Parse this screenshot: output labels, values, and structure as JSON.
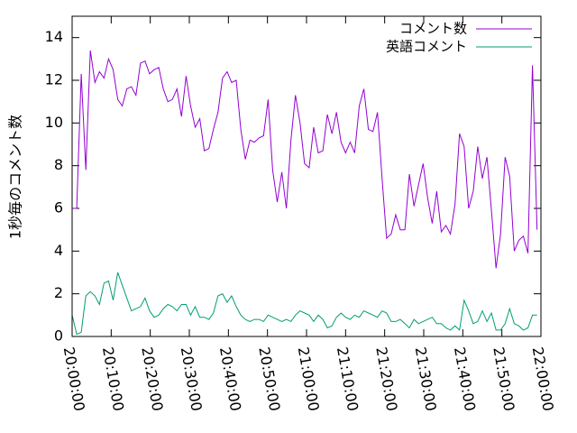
{
  "chart_data": {
    "type": "line",
    "ylabel": "1秒毎のコメント数",
    "x": [
      "20:00:00",
      "20:01:10",
      "20:02:20",
      "20:03:30",
      "20:04:40",
      "20:05:50",
      "20:07:00",
      "20:08:10",
      "20:09:20",
      "20:10:30",
      "20:11:40",
      "20:12:50",
      "20:14:00",
      "20:15:10",
      "20:16:20",
      "20:17:30",
      "20:18:40",
      "20:19:50",
      "20:21:00",
      "20:22:10",
      "20:23:20",
      "20:24:30",
      "20:25:40",
      "20:26:50",
      "20:28:00",
      "20:29:10",
      "20:30:20",
      "20:31:30",
      "20:32:40",
      "20:33:50",
      "20:35:00",
      "20:36:10",
      "20:37:20",
      "20:38:30",
      "20:39:40",
      "20:40:50",
      "20:42:00",
      "20:43:10",
      "20:44:20",
      "20:45:30",
      "20:46:40",
      "20:47:50",
      "20:49:00",
      "20:50:10",
      "20:51:20",
      "20:52:30",
      "20:53:40",
      "20:54:50",
      "20:56:00",
      "20:57:10",
      "20:58:20",
      "20:59:30",
      "21:00:40",
      "21:01:50",
      "21:03:00",
      "21:04:10",
      "21:05:20",
      "21:06:30",
      "21:07:40",
      "21:08:50",
      "21:10:00",
      "21:11:10",
      "21:12:20",
      "21:13:30",
      "21:14:40",
      "21:15:50",
      "21:17:00",
      "21:18:10",
      "21:19:20",
      "21:20:30",
      "21:21:40",
      "21:22:50",
      "21:24:00",
      "21:25:10",
      "21:26:20",
      "21:27:30",
      "21:28:40",
      "21:29:50",
      "21:31:00",
      "21:32:10",
      "21:33:20",
      "21:34:30",
      "21:35:40",
      "21:36:50",
      "21:38:00",
      "21:39:10",
      "21:40:20",
      "21:41:30",
      "21:42:40",
      "21:43:50",
      "21:45:00",
      "21:46:10",
      "21:47:20",
      "21:48:30",
      "21:49:40",
      "21:50:50",
      "21:52:00",
      "21:53:10",
      "21:54:20",
      "21:55:30",
      "21:56:40",
      "21:57:50",
      "21:59:00"
    ],
    "series": [
      {
        "name": "コメント数",
        "color": "#9400d3",
        "values": [
          6.0,
          6.0,
          12.3,
          7.8,
          13.4,
          11.9,
          12.4,
          12.1,
          13.0,
          12.5,
          11.1,
          10.8,
          11.6,
          11.7,
          11.3,
          12.8,
          12.9,
          12.3,
          12.5,
          12.6,
          11.6,
          11.0,
          11.1,
          11.6,
          10.3,
          12.2,
          10.8,
          9.8,
          10.2,
          8.7,
          8.8,
          9.7,
          10.5,
          12.1,
          12.4,
          11.9,
          12.0,
          9.7,
          8.3,
          9.2,
          9.1,
          9.3,
          9.4,
          11.1,
          7.8,
          6.3,
          7.7,
          6.0,
          9.2,
          11.3,
          10.0,
          8.1,
          7.9,
          9.8,
          8.6,
          8.7,
          10.4,
          9.5,
          10.5,
          9.1,
          8.6,
          9.1,
          8.6,
          10.8,
          11.6,
          9.7,
          9.6,
          10.5,
          7.4,
          4.6,
          4.8,
          5.7,
          5.0,
          5.0,
          7.6,
          6.1,
          7.1,
          8.1,
          6.5,
          5.3,
          6.8,
          4.9,
          5.2,
          4.8,
          6.2,
          9.5,
          8.9,
          6.0,
          6.8,
          8.9,
          7.4,
          8.4,
          5.9,
          3.2,
          4.8,
          8.4,
          7.5,
          4.0,
          4.5,
          4.7,
          3.9,
          12.7,
          5.0
        ]
      },
      {
        "name": "英語コメント",
        "color": "#009e73",
        "values": [
          1.0,
          0.1,
          0.2,
          1.9,
          2.1,
          1.9,
          1.5,
          2.5,
          2.6,
          1.7,
          3.0,
          2.4,
          1.8,
          1.2,
          1.3,
          1.4,
          1.8,
          1.2,
          0.9,
          1.0,
          1.3,
          1.5,
          1.4,
          1.2,
          1.5,
          1.5,
          1.0,
          1.4,
          0.9,
          0.9,
          0.8,
          1.1,
          1.9,
          2.0,
          1.6,
          1.9,
          1.4,
          1.0,
          0.8,
          0.7,
          0.8,
          0.8,
          0.7,
          1.0,
          0.9,
          0.8,
          0.7,
          0.8,
          0.7,
          1.0,
          1.2,
          1.1,
          1.0,
          0.7,
          1.0,
          0.8,
          0.4,
          0.5,
          0.9,
          1.1,
          0.9,
          0.8,
          1.0,
          0.9,
          1.2,
          1.1,
          1.0,
          0.9,
          1.2,
          1.1,
          0.7,
          0.7,
          0.8,
          0.6,
          0.4,
          0.8,
          0.6,
          0.7,
          0.8,
          0.9,
          0.6,
          0.6,
          0.4,
          0.3,
          0.5,
          0.3,
          1.7,
          1.2,
          0.6,
          0.7,
          1.2,
          0.7,
          1.1,
          0.3,
          0.3,
          0.6,
          1.3,
          0.6,
          0.5,
          0.3,
          0.4,
          1.0,
          1.0
        ]
      }
    ],
    "xlim": [
      "20:00:00",
      "22:00:00"
    ],
    "xticks": [
      "20:00:00",
      "20:10:00",
      "20:20:00",
      "20:30:00",
      "20:40:00",
      "20:50:00",
      "21:00:00",
      "21:10:00",
      "21:20:00",
      "21:30:00",
      "21:40:00",
      "21:50:00",
      "22:00:00"
    ],
    "ylim": [
      0,
      15
    ],
    "yticks": [
      0,
      2,
      4,
      6,
      8,
      10,
      12,
      14
    ],
    "legend": "top right"
  }
}
